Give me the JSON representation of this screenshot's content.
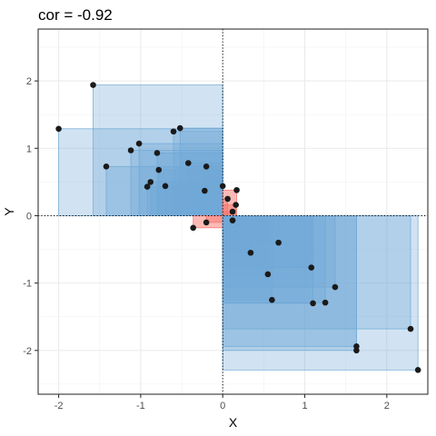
{
  "chart_data": {
    "type": "scatter",
    "title": "cor = -0.92",
    "xlabel": "X",
    "ylabel": "Y",
    "xlim": [
      -2.25,
      2.5
    ],
    "ylim": [
      -2.65,
      2.77
    ],
    "x_ticks": [
      -2,
      -1,
      0,
      1,
      2
    ],
    "y_ticks": [
      -2,
      -1,
      0,
      1,
      2
    ],
    "x_tick_labels": [
      "-2",
      "-1",
      "0",
      "1",
      "2"
    ],
    "y_tick_labels": [
      "-2",
      "-1",
      "0",
      "1",
      "2"
    ],
    "grid": true,
    "reference_lines": {
      "x": 0,
      "y": 0,
      "style": "dotted"
    },
    "colors": {
      "positive_product": "#f8766d",
      "negative_product": "#6fa8d6",
      "point": "#1a1a1a",
      "panel_border": "#333333",
      "grid": "#ebebeb"
    },
    "points": [
      {
        "x": -2.0,
        "y": 1.29
      },
      {
        "x": -1.58,
        "y": 1.94
      },
      {
        "x": -1.42,
        "y": 0.73
      },
      {
        "x": -1.12,
        "y": 0.97
      },
      {
        "x": -1.02,
        "y": 1.07
      },
      {
        "x": -0.92,
        "y": 0.43
      },
      {
        "x": -0.88,
        "y": 0.5
      },
      {
        "x": -0.8,
        "y": 0.93
      },
      {
        "x": -0.78,
        "y": 0.68
      },
      {
        "x": -0.7,
        "y": 0.44
      },
      {
        "x": -0.6,
        "y": 1.25
      },
      {
        "x": -0.52,
        "y": 1.3
      },
      {
        "x": -0.42,
        "y": 0.78
      },
      {
        "x": -0.22,
        "y": 0.37
      },
      {
        "x": -0.2,
        "y": 0.73
      },
      {
        "x": -0.36,
        "y": -0.18
      },
      {
        "x": -0.2,
        "y": -0.1
      },
      {
        "x": 0.0,
        "y": 0.44
      },
      {
        "x": 0.06,
        "y": 0.25
      },
      {
        "x": 0.17,
        "y": 0.38
      },
      {
        "x": 0.16,
        "y": 0.16
      },
      {
        "x": 0.12,
        "y": 0.06
      },
      {
        "x": 0.12,
        "y": -0.07
      },
      {
        "x": 0.34,
        "y": -0.55
      },
      {
        "x": 0.55,
        "y": -0.87
      },
      {
        "x": 0.6,
        "y": -1.25
      },
      {
        "x": 0.68,
        "y": -0.4
      },
      {
        "x": 1.08,
        "y": -0.77
      },
      {
        "x": 1.1,
        "y": -1.3
      },
      {
        "x": 1.25,
        "y": -1.29
      },
      {
        "x": 1.37,
        "y": -1.06
      },
      {
        "x": 1.63,
        "y": -1.94
      },
      {
        "x": 1.63,
        "y": -2.0
      },
      {
        "x": 2.29,
        "y": -1.68
      },
      {
        "x": 2.38,
        "y": -2.29
      }
    ]
  }
}
